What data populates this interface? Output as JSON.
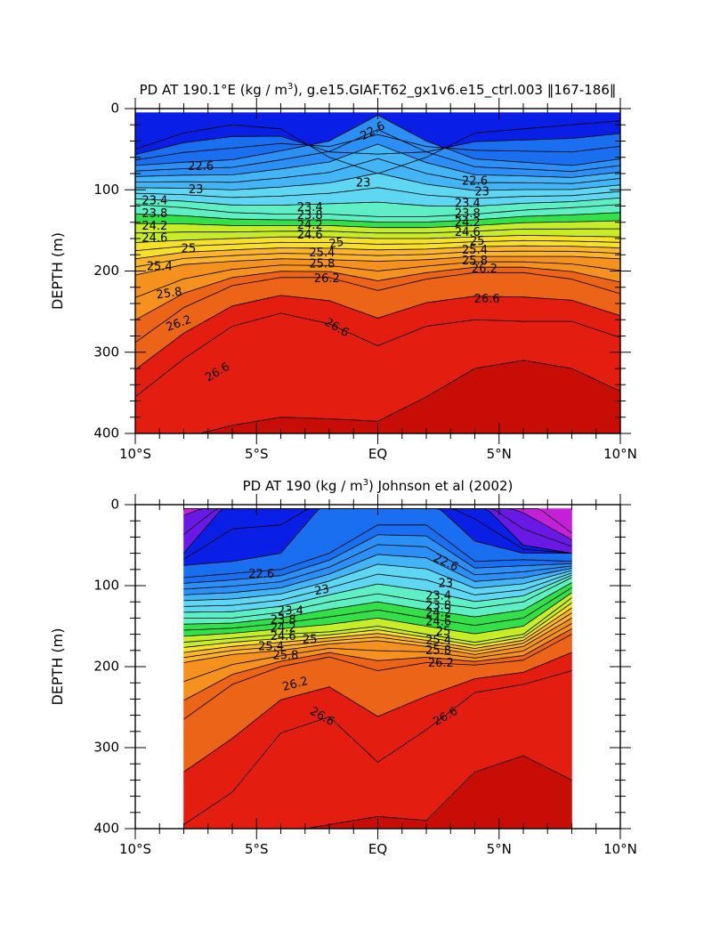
{
  "chart_data": [
    {
      "type": "contour",
      "title_parts": [
        "PD AT 190.1°E (kg / m",
        "3",
        "), g.e15.GIAF.T62_gx1v6.e15_ctrl.003 ‖167-186‖"
      ],
      "xlabel": "",
      "ylabel": "DEPTH (m)",
      "xlim": [
        -10,
        10
      ],
      "ylim": [
        400,
        0
      ],
      "x_ticks": [
        -10,
        -5,
        0,
        5,
        10
      ],
      "x_tick_labels": [
        "10°S",
        "5°S",
        "EQ",
        "5°N",
        "10°N"
      ],
      "y_ticks": [
        0,
        100,
        200,
        300,
        400
      ],
      "y_tick_labels": [
        "0",
        "100",
        "200",
        "300",
        "400"
      ],
      "data_x_range": [
        -10,
        10
      ],
      "data_top_depth": 5,
      "contour_interval": 0.2,
      "min_level": 22.0,
      "max_level": 26.8,
      "palette": [
        "#0a1fe6",
        "#1a6ef0",
        "#2b8ff5",
        "#43b5f7",
        "#5fd6f2",
        "#5ef0c4",
        "#34e04a",
        "#c8ec28",
        "#f7e02a",
        "#fbb42c",
        "#f5921f",
        "#ec6418",
        "#e31d10",
        "#c80d06"
      ],
      "cols": [
        -10,
        -8,
        -6,
        -4,
        -2,
        0,
        2,
        4,
        6,
        8,
        10
      ],
      "profiles": {
        "22.0": [
          50,
          30,
          20,
          25,
          60,
          80,
          60,
          30,
          25,
          20,
          15
        ],
        "22.6": [
          70,
          66,
          63,
          52,
          40,
          8,
          40,
          62,
          66,
          70,
          62
        ],
        "24.0": [
          118,
          122,
          128,
          130,
          130,
          133,
          133,
          130,
          125,
          122,
          118
        ],
        "24.8": [
          165,
          162,
          160,
          158,
          158,
          160,
          160,
          158,
          156,
          157,
          158
        ],
        "25.6": [
          205,
          192,
          188,
          185,
          186,
          188,
          186,
          182,
          182,
          182,
          185
        ],
        "26.2": [
          288,
          245,
          218,
          208,
          208,
          224,
          210,
          202,
          202,
          210,
          228
        ],
        "26.6": [
          355,
          308,
          268,
          252,
          265,
          292,
          268,
          260,
          262,
          262,
          282
        ],
        "26.8": [
          425,
          405,
          390,
          380,
          382,
          385,
          355,
          320,
          310,
          320,
          348
        ]
      },
      "labels": [
        {
          "text": "22.6",
          "x": -7.3,
          "y": 72,
          "rot": 0
        },
        {
          "text": "22.6",
          "x": -0.2,
          "y": 28,
          "rot": -28
        },
        {
          "text": "22.6",
          "x": 4.0,
          "y": 90,
          "rot": 0
        },
        {
          "text": "23",
          "x": -7.5,
          "y": 100,
          "rot": 0
        },
        {
          "text": "23",
          "x": -0.6,
          "y": 92,
          "rot": 0
        },
        {
          "text": "23",
          "x": 4.3,
          "y": 103,
          "rot": 0
        },
        {
          "text": "23.4",
          "x": -9.2,
          "y": 114,
          "rot": 0
        },
        {
          "text": "23.4",
          "x": -2.8,
          "y": 122,
          "rot": 0
        },
        {
          "text": "23.4",
          "x": 3.7,
          "y": 117,
          "rot": 0
        },
        {
          "text": "23.8",
          "x": -9.2,
          "y": 130,
          "rot": 0
        },
        {
          "text": "23.8",
          "x": -2.8,
          "y": 132,
          "rot": 0
        },
        {
          "text": "23.8",
          "x": 3.7,
          "y": 130,
          "rot": 0
        },
        {
          "text": "24.2",
          "x": -9.2,
          "y": 145,
          "rot": 0
        },
        {
          "text": "24.2",
          "x": -2.8,
          "y": 144,
          "rot": 0
        },
        {
          "text": "24.2",
          "x": 3.7,
          "y": 141,
          "rot": 0
        },
        {
          "text": "24.6",
          "x": -9.2,
          "y": 160,
          "rot": 0
        },
        {
          "text": "24.6",
          "x": -2.8,
          "y": 156,
          "rot": 0
        },
        {
          "text": "24.6",
          "x": 3.7,
          "y": 153,
          "rot": 0
        },
        {
          "text": "25",
          "x": -7.8,
          "y": 173,
          "rot": 0
        },
        {
          "text": "25",
          "x": -1.7,
          "y": 166,
          "rot": -10
        },
        {
          "text": "25",
          "x": 4.1,
          "y": 164,
          "rot": 0
        },
        {
          "text": "25.4",
          "x": -9.0,
          "y": 195,
          "rot": 0
        },
        {
          "text": "25.4",
          "x": -2.3,
          "y": 178,
          "rot": 0
        },
        {
          "text": "25.4",
          "x": 4.0,
          "y": 175,
          "rot": 0
        },
        {
          "text": "25.8",
          "x": -8.6,
          "y": 228,
          "rot": -8
        },
        {
          "text": "25.8",
          "x": -2.3,
          "y": 192,
          "rot": 0
        },
        {
          "text": "25.8",
          "x": 4.0,
          "y": 188,
          "rot": 0
        },
        {
          "text": "26.2",
          "x": -8.2,
          "y": 265,
          "rot": -20
        },
        {
          "text": "26.2",
          "x": -2.1,
          "y": 210,
          "rot": 0
        },
        {
          "text": "26.2",
          "x": 4.4,
          "y": 198,
          "rot": 0
        },
        {
          "text": "26.6",
          "x": -6.6,
          "y": 325,
          "rot": -30
        },
        {
          "text": "26.6",
          "x": -1.7,
          "y": 270,
          "rot": 30
        },
        {
          "text": "26.6",
          "x": 4.5,
          "y": 235,
          "rot": 0
        }
      ]
    },
    {
      "type": "contour",
      "title_parts": [
        "PD AT 190 (kg / m",
        "3",
        ") Johnson et al (2002)"
      ],
      "xlabel": "",
      "ylabel": "DEPTH (m)",
      "xlim": [
        -10,
        10
      ],
      "ylim": [
        400,
        0
      ],
      "x_ticks": [
        -10,
        -5,
        0,
        5,
        10
      ],
      "x_tick_labels": [
        "10°S",
        "5°S",
        "EQ",
        "5°N",
        "10°N"
      ],
      "y_ticks": [
        0,
        100,
        200,
        300,
        400
      ],
      "y_tick_labels": [
        "0",
        "100",
        "200",
        "300",
        "400"
      ],
      "data_x_range": [
        -8,
        8
      ],
      "data_top_depth": 5,
      "contour_interval": 0.2,
      "min_level": 21.4,
      "max_level": 26.8,
      "palette": [
        "#c61fd8",
        "#6a18e6",
        "#0a1fe6",
        "#1a6ef0",
        "#2b8ff5",
        "#43b5f7",
        "#5fd6f2",
        "#5ef0c4",
        "#34e04a",
        "#c8ec28",
        "#f7e02a",
        "#fbb42c",
        "#f5921f",
        "#ec6418",
        "#e31d10",
        "#c80d06"
      ],
      "cols": [
        -8,
        -6,
        -4,
        -2,
        0,
        2,
        4,
        6,
        8
      ],
      "profiles": {
        "21.4": [
          -10,
          -10,
          -10,
          -10,
          -10,
          -10,
          -10,
          -10,
          35
        ],
        "22.0": [
          60,
          -10,
          -10,
          -10,
          -10,
          -10,
          -10,
          50,
          60
        ],
        "22.4": [
          75,
          70,
          60,
          -10,
          -10,
          -10,
          45,
          60,
          60
        ],
        "22.6": [
          90,
          85,
          80,
          60,
          25,
          25,
          70,
          68,
          70
        ],
        "24.0": [
          140,
          140,
          133,
          120,
          110,
          120,
          128,
          120,
          90
        ],
        "24.8": [
          170,
          165,
          160,
          157,
          150,
          160,
          170,
          160,
          115
        ],
        "25.6": [
          195,
          185,
          180,
          172,
          168,
          175,
          185,
          175,
          140
        ],
        "26.2": [
          265,
          222,
          200,
          188,
          205,
          195,
          198,
          192,
          160
        ],
        "26.6": [
          395,
          355,
          282,
          262,
          318,
          278,
          232,
          222,
          205
        ],
        "26.8": [
          430,
          430,
          405,
          395,
          385,
          390,
          330,
          310,
          340
        ]
      },
      "labels": [
        {
          "text": "22.6",
          "x": -4.8,
          "y": 86,
          "rot": 0
        },
        {
          "text": "22.6",
          "x": 2.8,
          "y": 72,
          "rot": 25
        },
        {
          "text": "23",
          "x": -2.3,
          "y": 106,
          "rot": -10
        },
        {
          "text": "23",
          "x": 2.8,
          "y": 98,
          "rot": 0
        },
        {
          "text": "23.4",
          "x": -3.6,
          "y": 132,
          "rot": 0
        },
        {
          "text": "23.4",
          "x": 2.5,
          "y": 113,
          "rot": 0
        },
        {
          "text": "23.8",
          "x": -3.9,
          "y": 143,
          "rot": 0
        },
        {
          "text": "23.8",
          "x": 2.5,
          "y": 125,
          "rot": 0
        },
        {
          "text": "24.2",
          "x": -3.9,
          "y": 153,
          "rot": 0
        },
        {
          "text": "24.2",
          "x": 2.5,
          "y": 134,
          "rot": 0
        },
        {
          "text": "24.6",
          "x": -3.9,
          "y": 163,
          "rot": 0
        },
        {
          "text": "24.6",
          "x": 2.5,
          "y": 145,
          "rot": 0
        },
        {
          "text": "25",
          "x": -2.8,
          "y": 167,
          "rot": 0
        },
        {
          "text": "25",
          "x": 2.7,
          "y": 157,
          "rot": 0
        },
        {
          "text": "25.4",
          "x": -4.4,
          "y": 176,
          "rot": 0
        },
        {
          "text": "25.4",
          "x": 2.5,
          "y": 168,
          "rot": 0
        },
        {
          "text": "25.8",
          "x": -3.8,
          "y": 187,
          "rot": 0
        },
        {
          "text": "25.8",
          "x": 2.5,
          "y": 181,
          "rot": 0
        },
        {
          "text": "26.2",
          "x": -3.4,
          "y": 222,
          "rot": -15
        },
        {
          "text": "26.2",
          "x": 2.6,
          "y": 196,
          "rot": 0
        },
        {
          "text": "26.6",
          "x": -2.3,
          "y": 262,
          "rot": 30
        },
        {
          "text": "26.6",
          "x": 2.8,
          "y": 262,
          "rot": -30
        }
      ]
    }
  ]
}
